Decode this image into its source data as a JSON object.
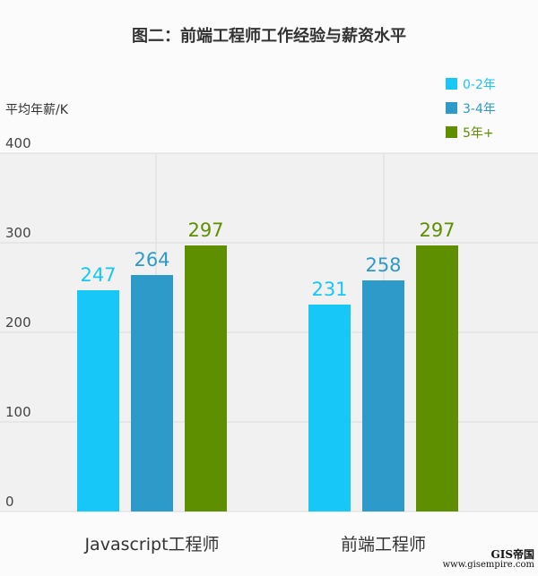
{
  "chart_data": {
    "type": "bar",
    "title": "图二：前端工程师工作经验与薪资水平",
    "ylabel": "平均年薪/K",
    "ylim": [
      0,
      400
    ],
    "yticks": [
      0,
      100,
      200,
      300,
      400
    ],
    "categories": [
      "Javascript工程师",
      "前端工程师"
    ],
    "series": [
      {
        "name": "0-2年",
        "values": [
          247,
          231
        ],
        "color": "#17c7f7"
      },
      {
        "name": "3-4年",
        "values": [
          264,
          258
        ],
        "color": "#2e9ac9"
      },
      {
        "name": "5年+",
        "values": [
          297,
          297
        ],
        "color": "#5e8f00"
      }
    ],
    "grid": true,
    "legend": "top-right"
  },
  "watermark": {
    "brand": "GIS帝国",
    "url": "www.gisempire.com"
  }
}
